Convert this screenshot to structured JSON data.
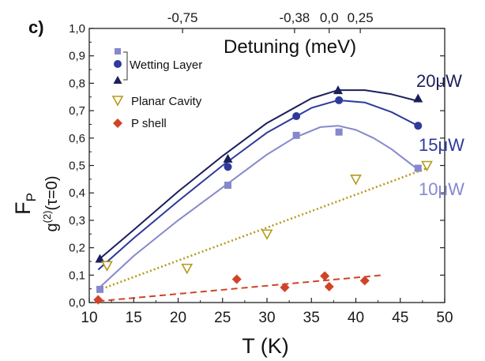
{
  "chart_data": {
    "type": "scatter",
    "panel_label": "c)",
    "xlabel": "T (K)",
    "ylabel_fp": "F",
    "ylabel_fp_sub": "P",
    "ylabel_g2": "g",
    "ylabel_g2_sup": "(2)",
    "ylabel_g2_arg": "(τ=0)",
    "top_axis_title": "Detuning (meV)",
    "xlim": [
      10,
      50
    ],
    "ylim": [
      0,
      1.0
    ],
    "x_ticks": [
      "10",
      "15",
      "20",
      "25",
      "30",
      "35",
      "40",
      "45",
      "50"
    ],
    "y_ticks": [
      "0,0",
      "0,1",
      "0,2",
      "0,3",
      "0,4",
      "0,5",
      "0,6",
      "0,7",
      "0,8",
      "0,9",
      "1,0"
    ],
    "top_ticks": [
      {
        "label": "-0,75",
        "T": 20.5
      },
      {
        "label": "-0,38",
        "T": 33.1
      },
      {
        "label": "0,0",
        "T": 37.0
      },
      {
        "label": "0,25",
        "T": 40.5
      }
    ],
    "legend": {
      "wetting_layer": "Wetting Layer",
      "planar_cavity": "Planar Cavity",
      "p_shell": "P shell"
    },
    "series": [
      {
        "name": "20μW",
        "group": "Wetting Layer",
        "marker": "triangle",
        "color": "#1b1f5c",
        "x": [
          11.2,
          25.6,
          38.0,
          47.0
        ],
        "y": [
          0.16,
          0.525,
          0.775,
          0.745
        ],
        "fit": [
          [
            11,
            0.155
          ],
          [
            15,
            0.265
          ],
          [
            20,
            0.405
          ],
          [
            25,
            0.535
          ],
          [
            30,
            0.655
          ],
          [
            35,
            0.745
          ],
          [
            38,
            0.775
          ],
          [
            41,
            0.775
          ],
          [
            44,
            0.76
          ],
          [
            47,
            0.735
          ]
        ]
      },
      {
        "name": "15μW",
        "group": "Wetting Layer",
        "marker": "circle",
        "color": "#2e3a9c",
        "x": [
          25.6,
          33.3,
          38.1,
          47.0
        ],
        "y": [
          0.495,
          0.68,
          0.738,
          0.645
        ],
        "fit": [
          [
            11,
            0.12
          ],
          [
            15,
            0.235
          ],
          [
            20,
            0.37
          ],
          [
            25,
            0.5
          ],
          [
            30,
            0.62
          ],
          [
            35,
            0.71
          ],
          [
            38,
            0.738
          ],
          [
            41,
            0.73
          ],
          [
            44,
            0.695
          ],
          [
            47,
            0.645
          ]
        ]
      },
      {
        "name": "10μW",
        "group": "Wetting Layer",
        "marker": "square",
        "color": "#8688cc",
        "x": [
          11.2,
          25.6,
          33.3,
          38.1,
          47.0
        ],
        "y": [
          0.048,
          0.428,
          0.61,
          0.622,
          0.49
        ],
        "fit": [
          [
            11,
            0.05
          ],
          [
            15,
            0.17
          ],
          [
            20,
            0.3
          ],
          [
            25,
            0.42
          ],
          [
            30,
            0.54
          ],
          [
            33,
            0.6
          ],
          [
            36,
            0.64
          ],
          [
            38,
            0.645
          ],
          [
            40,
            0.63
          ],
          [
            42,
            0.6
          ],
          [
            44,
            0.56
          ],
          [
            47,
            0.485
          ]
        ]
      },
      {
        "name": "Planar Cavity",
        "marker": "triangle-down-open",
        "color": "#b59a1c",
        "x": [
          12.0,
          21.0,
          30.0,
          40.0,
          48.0
        ],
        "y": [
          0.135,
          0.125,
          0.25,
          0.45,
          0.5
        ],
        "fit": [
          [
            11,
            0.045
          ],
          [
            48,
            0.49
          ]
        ]
      },
      {
        "name": "P shell",
        "marker": "diamond",
        "color": "#d14326",
        "x": [
          11.0,
          26.6,
          32.0,
          36.5,
          37.0,
          41.0
        ],
        "y": [
          0.01,
          0.085,
          0.055,
          0.097,
          0.058,
          0.08
        ],
        "fit": [
          [
            11,
            0.005
          ],
          [
            43,
            0.1
          ]
        ]
      }
    ],
    "power_labels": [
      {
        "text": "20μW",
        "color": "#1b1f5c"
      },
      {
        "text": "15μW",
        "color": "#2e3a9c"
      },
      {
        "text": "10μW",
        "color": "#8688cc"
      }
    ]
  }
}
